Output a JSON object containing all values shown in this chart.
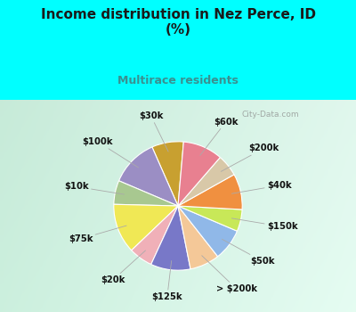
{
  "title": "Income distribution in Nez Perce, ID\n(%)",
  "subtitle": "Multirace residents",
  "labels": [
    "$30k",
    "$100k",
    "$10k",
    "$75k",
    "$20k",
    "$125k",
    "> $200k",
    "$50k",
    "$150k",
    "$40k",
    "$200k",
    "$60k"
  ],
  "sizes": [
    8.0,
    12.0,
    6.0,
    12.5,
    6.0,
    10.0,
    7.5,
    8.0,
    5.5,
    9.0,
    5.5,
    10.0
  ],
  "colors": [
    "#c8a030",
    "#9b8ec4",
    "#a8c890",
    "#f0e855",
    "#f0b0b8",
    "#7878c8",
    "#f4c898",
    "#90b8e8",
    "#c8e858",
    "#f09040",
    "#d8c8a8",
    "#e88090"
  ],
  "bg_top_color": "#00ffff",
  "bg_chart_color_tl": "#c8f0e0",
  "bg_chart_color_br": "#e8f8f0",
  "title_color": "#1a1a1a",
  "subtitle_color": "#3a9090",
  "startangle": 85,
  "wedge_edge_color": "#ffffff",
  "label_fontsize": 7.2,
  "watermark": "City-Data.com"
}
